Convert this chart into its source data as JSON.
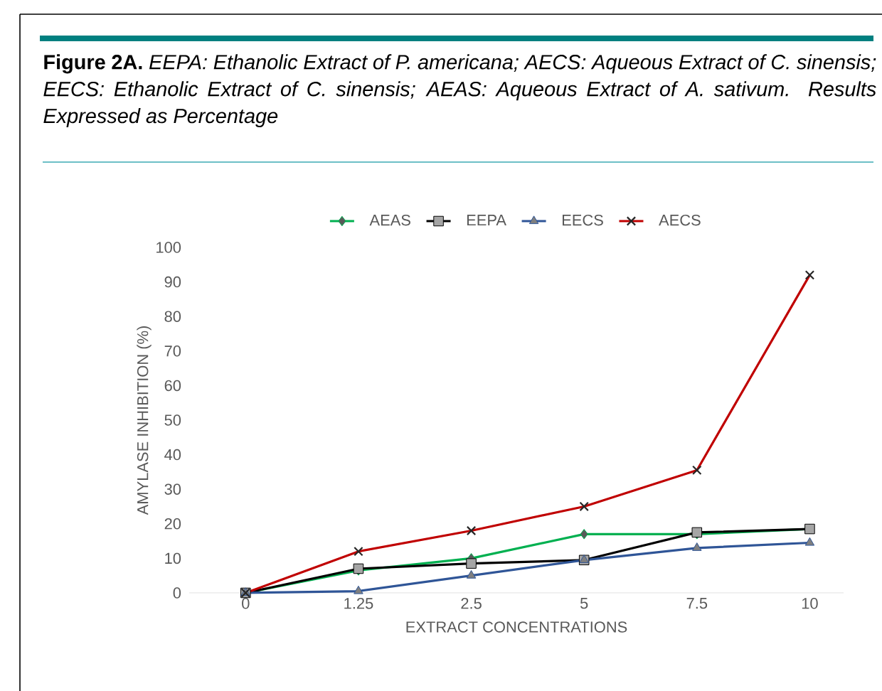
{
  "chart_data": {
    "type": "line",
    "title": "**Figure 2A.** *EEPA: Ethanolic Extract of P. americana; AECS: Aqueous Extract of C. sinensis; EECS: Ethanolic Extract of C. sinensis; AEAS: Aqueous Extract of A. sativum. Results Expressed as Percentage*",
    "xlabel": "EXTRACT CONCENTRATIONS",
    "ylabel": "AMYLASE INHIBITION (%)",
    "categories": [
      "0",
      "1.25",
      "2.5",
      "5",
      "7.5",
      "10"
    ],
    "series": [
      {
        "name": "AEAS",
        "color": "#00b050",
        "marker": "diamond",
        "values": [
          0,
          6.5,
          10,
          17,
          17,
          18.5
        ]
      },
      {
        "name": "EEPA",
        "color": "#000000",
        "marker": "square",
        "values": [
          0,
          7,
          8.5,
          9.5,
          17.5,
          18.5
        ]
      },
      {
        "name": "EECS",
        "color": "#2f5597",
        "marker": "triangle",
        "values": [
          0,
          0.5,
          5,
          9.5,
          13,
          14.5
        ]
      },
      {
        "name": "AECS",
        "color": "#c00000",
        "marker": "cross",
        "values": [
          0,
          12,
          18,
          25,
          35.5,
          92
        ]
      }
    ],
    "ylim": [
      0,
      100
    ],
    "yticks": [
      0,
      10,
      20,
      30,
      40,
      50,
      60,
      70,
      80,
      90,
      100
    ],
    "legend": "top",
    "grid": false,
    "line_style": "solid"
  }
}
